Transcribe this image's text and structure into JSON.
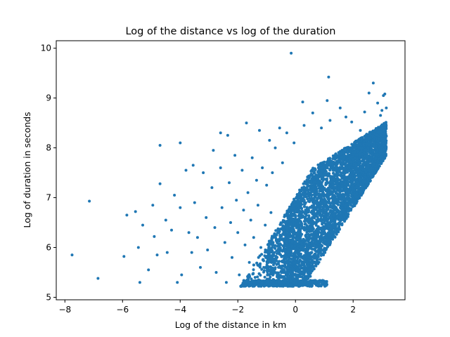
{
  "chart_data": {
    "type": "scatter",
    "title": "Log of the distance vs log of the duration",
    "xlabel": "Log of the distance in km",
    "ylabel": "Log of duration in seconds",
    "xlim": [
      -8.3,
      3.8
    ],
    "ylim": [
      4.95,
      10.15
    ],
    "xticks": [
      -8,
      -6,
      -4,
      -2,
      0,
      2
    ],
    "yticks": [
      5,
      6,
      7,
      8,
      9,
      10
    ],
    "grid": false,
    "legend": "none",
    "marker_color": "#1f77b4",
    "outlier_points": [
      [
        -7.75,
        5.85
      ],
      [
        -7.15,
        6.93
      ],
      [
        -6.85,
        5.38
      ],
      [
        -5.95,
        5.82
      ],
      [
        -5.85,
        6.65
      ],
      [
        -5.55,
        6.72
      ],
      [
        -5.45,
        6.0
      ],
      [
        -5.4,
        5.3
      ],
      [
        -5.3,
        6.45
      ],
      [
        -5.1,
        5.55
      ],
      [
        -4.95,
        6.85
      ],
      [
        -4.9,
        6.22
      ],
      [
        -4.8,
        5.85
      ],
      [
        -4.7,
        8.05
      ],
      [
        -4.7,
        7.28
      ],
      [
        -4.5,
        6.55
      ],
      [
        -4.45,
        5.9
      ],
      [
        -4.3,
        6.35
      ],
      [
        -4.2,
        7.05
      ],
      [
        -4.1,
        5.3
      ],
      [
        -4.0,
        8.1
      ],
      [
        -4.0,
        6.8
      ],
      [
        -3.95,
        5.45
      ],
      [
        -3.8,
        7.55
      ],
      [
        -3.7,
        6.3
      ],
      [
        -3.6,
        5.9
      ],
      [
        -3.55,
        7.65
      ],
      [
        -3.5,
        6.9
      ],
      [
        -3.4,
        6.2
      ],
      [
        -3.3,
        5.6
      ],
      [
        -3.2,
        7.5
      ],
      [
        -3.1,
        6.6
      ],
      [
        -3.05,
        5.95
      ],
      [
        -2.9,
        7.2
      ],
      [
        -2.85,
        7.95
      ],
      [
        -2.8,
        6.4
      ],
      [
        -2.75,
        5.5
      ],
      [
        -2.6,
        8.3
      ],
      [
        -2.6,
        7.6
      ],
      [
        -2.55,
        6.8
      ],
      [
        -2.45,
        6.1
      ],
      [
        -2.4,
        5.3
      ],
      [
        -2.35,
        8.25
      ],
      [
        -2.3,
        7.3
      ],
      [
        -2.25,
        6.5
      ],
      [
        -2.2,
        5.8
      ],
      [
        -2.1,
        7.85
      ],
      [
        -2.05,
        6.95
      ],
      [
        -2.0,
        6.3
      ],
      [
        -1.95,
        5.45
      ],
      [
        -1.85,
        7.55
      ],
      [
        -1.8,
        6.75
      ],
      [
        -1.75,
        6.05
      ],
      [
        -1.7,
        8.5
      ],
      [
        -1.65,
        7.1
      ],
      [
        -1.6,
        5.7
      ],
      [
        -1.55,
        6.55
      ],
      [
        -1.5,
        7.8
      ],
      [
        -1.45,
        6.2
      ],
      [
        -1.4,
        5.4
      ],
      [
        -1.35,
        7.35
      ],
      [
        -1.3,
        6.85
      ],
      [
        -1.25,
        8.35
      ],
      [
        -1.2,
        6.0
      ],
      [
        -1.15,
        7.6
      ],
      [
        -1.1,
        5.6
      ],
      [
        -1.05,
        6.45
      ],
      [
        -1.0,
        7.25
      ],
      [
        -0.95,
        5.9
      ],
      [
        -0.9,
        8.15
      ],
      [
        -0.85,
        6.7
      ],
      [
        -0.8,
        7.5
      ],
      [
        -0.75,
        5.35
      ],
      [
        -0.7,
        8.0
      ],
      [
        -0.65,
        6.25
      ],
      [
        -0.55,
        8.4
      ],
      [
        -0.45,
        7.7
      ],
      [
        -0.3,
        8.3
      ],
      [
        -0.15,
        9.9
      ],
      [
        -0.05,
        8.1
      ],
      [
        0.25,
        8.92
      ],
      [
        0.3,
        8.45
      ],
      [
        0.6,
        8.7
      ],
      [
        0.9,
        8.4
      ],
      [
        1.1,
        8.95
      ],
      [
        1.2,
        8.55
      ],
      [
        1.55,
        8.8
      ],
      [
        1.75,
        8.62
      ],
      [
        1.95,
        8.52
      ],
      [
        1.15,
        9.42
      ],
      [
        2.25,
        8.35
      ],
      [
        2.4,
        8.72
      ],
      [
        2.55,
        9.1
      ],
      [
        2.7,
        9.3
      ],
      [
        2.85,
        8.9
      ],
      [
        2.95,
        8.65
      ],
      [
        3.05,
        9.05
      ],
      [
        3.15,
        8.8
      ],
      [
        3.1,
        9.08
      ],
      [
        3.0,
        8.75
      ]
    ],
    "density_cluster": {
      "description_of_shape": "dense wedge",
      "base_y": 5.22,
      "x_start": -1.9,
      "x_end": 3.15,
      "point_count": 5200
    }
  }
}
